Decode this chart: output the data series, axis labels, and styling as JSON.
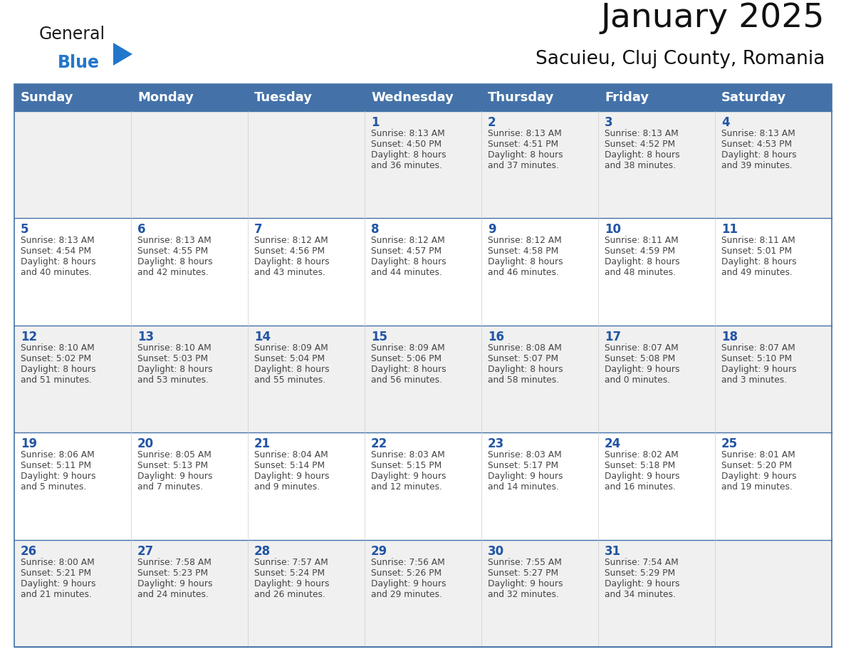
{
  "title": "January 2025",
  "subtitle": "Sacuieu, Cluj County, Romania",
  "days_of_week": [
    "Sunday",
    "Monday",
    "Tuesday",
    "Wednesday",
    "Thursday",
    "Friday",
    "Saturday"
  ],
  "header_bg": "#4472a8",
  "header_text": "#ffffff",
  "cell_bg_odd": "#f0f0f0",
  "cell_bg_even": "#ffffff",
  "day_number_color": "#2255a4",
  "text_color": "#444444",
  "line_color": "#4472a8",
  "logo_general_color": "#1a1a1a",
  "logo_blue_color": "#2277cc",
  "logo_triangle_color": "#2277cc",
  "calendar_data": [
    [
      {
        "day": null,
        "sunrise": null,
        "sunset": null,
        "daylight_line1": null,
        "daylight_line2": null
      },
      {
        "day": null,
        "sunrise": null,
        "sunset": null,
        "daylight_line1": null,
        "daylight_line2": null
      },
      {
        "day": null,
        "sunrise": null,
        "sunset": null,
        "daylight_line1": null,
        "daylight_line2": null
      },
      {
        "day": 1,
        "sunrise": "8:13 AM",
        "sunset": "4:50 PM",
        "daylight_line1": "Daylight: 8 hours",
        "daylight_line2": "and 36 minutes."
      },
      {
        "day": 2,
        "sunrise": "8:13 AM",
        "sunset": "4:51 PM",
        "daylight_line1": "Daylight: 8 hours",
        "daylight_line2": "and 37 minutes."
      },
      {
        "day": 3,
        "sunrise": "8:13 AM",
        "sunset": "4:52 PM",
        "daylight_line1": "Daylight: 8 hours",
        "daylight_line2": "and 38 minutes."
      },
      {
        "day": 4,
        "sunrise": "8:13 AM",
        "sunset": "4:53 PM",
        "daylight_line1": "Daylight: 8 hours",
        "daylight_line2": "and 39 minutes."
      }
    ],
    [
      {
        "day": 5,
        "sunrise": "8:13 AM",
        "sunset": "4:54 PM",
        "daylight_line1": "Daylight: 8 hours",
        "daylight_line2": "and 40 minutes."
      },
      {
        "day": 6,
        "sunrise": "8:13 AM",
        "sunset": "4:55 PM",
        "daylight_line1": "Daylight: 8 hours",
        "daylight_line2": "and 42 minutes."
      },
      {
        "day": 7,
        "sunrise": "8:12 AM",
        "sunset": "4:56 PM",
        "daylight_line1": "Daylight: 8 hours",
        "daylight_line2": "and 43 minutes."
      },
      {
        "day": 8,
        "sunrise": "8:12 AM",
        "sunset": "4:57 PM",
        "daylight_line1": "Daylight: 8 hours",
        "daylight_line2": "and 44 minutes."
      },
      {
        "day": 9,
        "sunrise": "8:12 AM",
        "sunset": "4:58 PM",
        "daylight_line1": "Daylight: 8 hours",
        "daylight_line2": "and 46 minutes."
      },
      {
        "day": 10,
        "sunrise": "8:11 AM",
        "sunset": "4:59 PM",
        "daylight_line1": "Daylight: 8 hours",
        "daylight_line2": "and 48 minutes."
      },
      {
        "day": 11,
        "sunrise": "8:11 AM",
        "sunset": "5:01 PM",
        "daylight_line1": "Daylight: 8 hours",
        "daylight_line2": "and 49 minutes."
      }
    ],
    [
      {
        "day": 12,
        "sunrise": "8:10 AM",
        "sunset": "5:02 PM",
        "daylight_line1": "Daylight: 8 hours",
        "daylight_line2": "and 51 minutes."
      },
      {
        "day": 13,
        "sunrise": "8:10 AM",
        "sunset": "5:03 PM",
        "daylight_line1": "Daylight: 8 hours",
        "daylight_line2": "and 53 minutes."
      },
      {
        "day": 14,
        "sunrise": "8:09 AM",
        "sunset": "5:04 PM",
        "daylight_line1": "Daylight: 8 hours",
        "daylight_line2": "and 55 minutes."
      },
      {
        "day": 15,
        "sunrise": "8:09 AM",
        "sunset": "5:06 PM",
        "daylight_line1": "Daylight: 8 hours",
        "daylight_line2": "and 56 minutes."
      },
      {
        "day": 16,
        "sunrise": "8:08 AM",
        "sunset": "5:07 PM",
        "daylight_line1": "Daylight: 8 hours",
        "daylight_line2": "and 58 minutes."
      },
      {
        "day": 17,
        "sunrise": "8:07 AM",
        "sunset": "5:08 PM",
        "daylight_line1": "Daylight: 9 hours",
        "daylight_line2": "and 0 minutes."
      },
      {
        "day": 18,
        "sunrise": "8:07 AM",
        "sunset": "5:10 PM",
        "daylight_line1": "Daylight: 9 hours",
        "daylight_line2": "and 3 minutes."
      }
    ],
    [
      {
        "day": 19,
        "sunrise": "8:06 AM",
        "sunset": "5:11 PM",
        "daylight_line1": "Daylight: 9 hours",
        "daylight_line2": "and 5 minutes."
      },
      {
        "day": 20,
        "sunrise": "8:05 AM",
        "sunset": "5:13 PM",
        "daylight_line1": "Daylight: 9 hours",
        "daylight_line2": "and 7 minutes."
      },
      {
        "day": 21,
        "sunrise": "8:04 AM",
        "sunset": "5:14 PM",
        "daylight_line1": "Daylight: 9 hours",
        "daylight_line2": "and 9 minutes."
      },
      {
        "day": 22,
        "sunrise": "8:03 AM",
        "sunset": "5:15 PM",
        "daylight_line1": "Daylight: 9 hours",
        "daylight_line2": "and 12 minutes."
      },
      {
        "day": 23,
        "sunrise": "8:03 AM",
        "sunset": "5:17 PM",
        "daylight_line1": "Daylight: 9 hours",
        "daylight_line2": "and 14 minutes."
      },
      {
        "day": 24,
        "sunrise": "8:02 AM",
        "sunset": "5:18 PM",
        "daylight_line1": "Daylight: 9 hours",
        "daylight_line2": "and 16 minutes."
      },
      {
        "day": 25,
        "sunrise": "8:01 AM",
        "sunset": "5:20 PM",
        "daylight_line1": "Daylight: 9 hours",
        "daylight_line2": "and 19 minutes."
      }
    ],
    [
      {
        "day": 26,
        "sunrise": "8:00 AM",
        "sunset": "5:21 PM",
        "daylight_line1": "Daylight: 9 hours",
        "daylight_line2": "and 21 minutes."
      },
      {
        "day": 27,
        "sunrise": "7:58 AM",
        "sunset": "5:23 PM",
        "daylight_line1": "Daylight: 9 hours",
        "daylight_line2": "and 24 minutes."
      },
      {
        "day": 28,
        "sunrise": "7:57 AM",
        "sunset": "5:24 PM",
        "daylight_line1": "Daylight: 9 hours",
        "daylight_line2": "and 26 minutes."
      },
      {
        "day": 29,
        "sunrise": "7:56 AM",
        "sunset": "5:26 PM",
        "daylight_line1": "Daylight: 9 hours",
        "daylight_line2": "and 29 minutes."
      },
      {
        "day": 30,
        "sunrise": "7:55 AM",
        "sunset": "5:27 PM",
        "daylight_line1": "Daylight: 9 hours",
        "daylight_line2": "and 32 minutes."
      },
      {
        "day": 31,
        "sunrise": "7:54 AM",
        "sunset": "5:29 PM",
        "daylight_line1": "Daylight: 9 hours",
        "daylight_line2": "and 34 minutes."
      },
      {
        "day": null,
        "sunrise": null,
        "sunset": null,
        "daylight_line1": null,
        "daylight_line2": null
      }
    ]
  ]
}
